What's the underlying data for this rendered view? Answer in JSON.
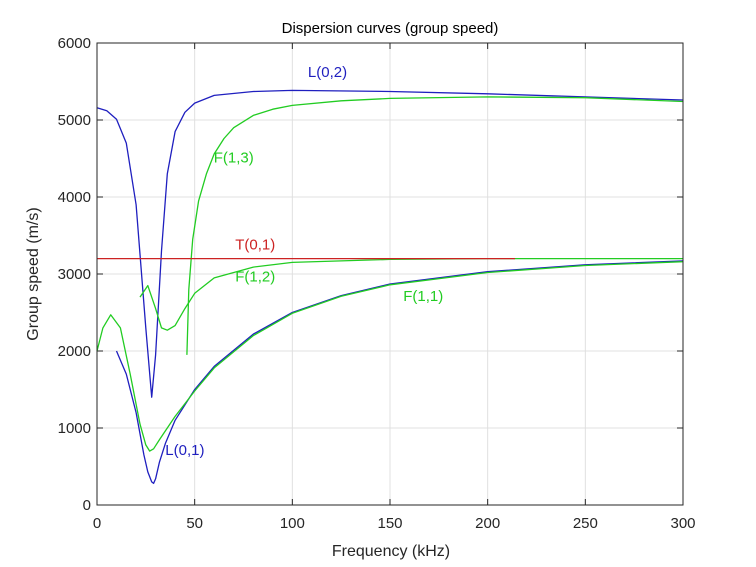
{
  "chart_data": {
    "type": "line",
    "title": "Dispersion curves (group speed)",
    "xlabel": "Frequency (kHz)",
    "ylabel": "Group speed (m/s)",
    "xlim": [
      0,
      300
    ],
    "ylim": [
      0,
      6000
    ],
    "xticks": [
      0,
      50,
      100,
      150,
      200,
      250,
      300
    ],
    "yticks": [
      0,
      1000,
      2000,
      3000,
      4000,
      5000,
      6000
    ],
    "grid": true,
    "colors": {
      "blue": "#1f1fbf",
      "green": "#22cc22",
      "red": "#cc2222",
      "grid": "#e0e0e0",
      "axis": "#262626"
    },
    "series": [
      {
        "name": "L(0,2)",
        "color": "#1f1fbf",
        "x": [
          0,
          5,
          10,
          15,
          20,
          25,
          28,
          30,
          33,
          36,
          40,
          45,
          50,
          60,
          80,
          100,
          150,
          200,
          250,
          300
        ],
        "y": [
          5160,
          5120,
          5010,
          4700,
          3900,
          2300,
          1400,
          1950,
          3300,
          4300,
          4850,
          5100,
          5220,
          5320,
          5370,
          5385,
          5370,
          5340,
          5300,
          5260
        ]
      },
      {
        "name": "L(0,1)",
        "color": "#1f1fbf",
        "x": [
          10,
          15,
          20,
          24,
          26,
          28,
          29,
          30,
          32,
          35,
          40,
          50,
          60,
          80,
          100,
          125,
          150,
          200,
          250,
          300
        ],
        "y": [
          2000,
          1700,
          1200,
          650,
          430,
          300,
          280,
          340,
          560,
          800,
          1100,
          1500,
          1800,
          2220,
          2500,
          2720,
          2870,
          3030,
          3120,
          3170
        ]
      },
      {
        "name": "F(1,1)",
        "color": "#22cc22",
        "x": [
          0,
          3,
          7,
          12,
          17,
          22,
          25,
          27,
          29,
          32,
          36,
          40,
          50,
          60,
          80,
          100,
          125,
          150,
          200,
          250,
          300
        ],
        "y": [
          2000,
          2300,
          2470,
          2300,
          1700,
          1050,
          780,
          700,
          730,
          850,
          1000,
          1150,
          1480,
          1780,
          2200,
          2490,
          2710,
          2860,
          3020,
          3110,
          3160
        ]
      },
      {
        "name": "F(1,2)",
        "color": "#22cc22",
        "x": [
          22,
          26,
          30,
          33,
          36,
          40,
          45,
          50,
          60,
          80,
          100,
          150,
          200,
          250,
          300
        ],
        "y": [
          2700,
          2850,
          2550,
          2300,
          2270,
          2330,
          2550,
          2750,
          2950,
          3090,
          3150,
          3190,
          3200,
          3200,
          3200
        ]
      },
      {
        "name": "F(1,3)",
        "color": "#22cc22",
        "x": [
          46,
          47,
          49,
          52,
          56,
          60,
          65,
          70,
          80,
          90,
          100,
          125,
          150,
          200,
          250,
          300
        ],
        "y": [
          1950,
          2800,
          3450,
          3950,
          4300,
          4560,
          4760,
          4900,
          5060,
          5140,
          5190,
          5250,
          5280,
          5300,
          5290,
          5240
        ]
      },
      {
        "name": "T(0,1)",
        "color": "#cc2222",
        "x": [
          0,
          214
        ],
        "y": [
          3200,
          3200
        ]
      }
    ],
    "annotations": [
      {
        "text": "L(0,2)",
        "x": 118,
        "y": 5560,
        "color": "#1f1fbf"
      },
      {
        "text": "F(1,3)",
        "x": 70,
        "y": 4450,
        "color": "#22cc22"
      },
      {
        "text": "T(0,1)",
        "x": 81,
        "y": 3320,
        "color": "#cc2222"
      },
      {
        "text": "F(1,2)",
        "x": 81,
        "y": 2900,
        "color": "#22cc22"
      },
      {
        "text": "F(1,1)",
        "x": 167,
        "y": 2650,
        "color": "#22cc22"
      },
      {
        "text": "L(0,1)",
        "x": 45,
        "y": 650,
        "color": "#1f1fbf"
      }
    ]
  }
}
